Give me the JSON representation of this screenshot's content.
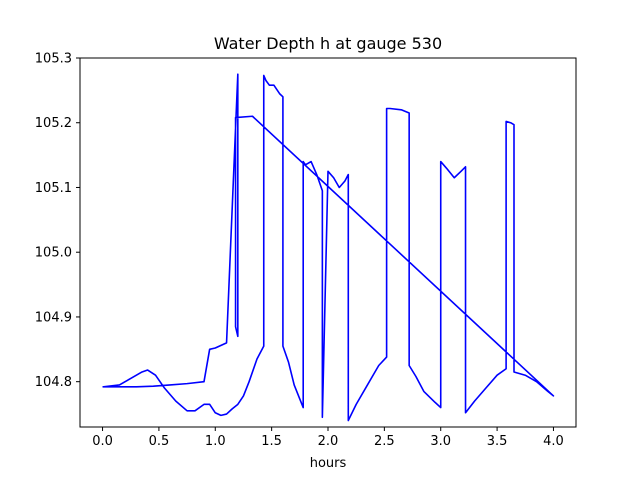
{
  "chart_data": {
    "type": "line",
    "title": "Water Depth h at gauge 530",
    "xlabel": "hours",
    "ylabel": "",
    "xlim": [
      -0.2,
      4.2
    ],
    "ylim": [
      104.73,
      105.3
    ],
    "xticks": [
      0.0,
      0.5,
      1.0,
      1.5,
      2.0,
      2.5,
      3.0,
      3.5,
      4.0
    ],
    "xtick_labels": [
      "0.0",
      "0.5",
      "1.0",
      "1.5",
      "2.0",
      "2.5",
      "3.0",
      "3.5",
      "4.0"
    ],
    "yticks": [
      104.8,
      104.9,
      105.0,
      105.1,
      105.2,
      105.3
    ],
    "ytick_labels": [
      "104.8",
      "104.9",
      "105.0",
      "105.1",
      "105.2",
      "105.3"
    ],
    "grid": false,
    "series": [
      {
        "color": "#0000ff",
        "x": [
          0.0,
          0.15,
          0.25,
          0.35,
          0.4,
          0.47,
          0.55,
          0.65,
          0.75,
          0.82,
          0.9,
          0.95,
          1.0,
          1.05,
          1.1,
          1.15,
          1.2,
          1.25,
          1.3,
          1.37,
          1.43,
          1.43,
          1.45,
          1.48,
          1.52,
          1.57,
          1.6,
          1.6,
          1.65,
          1.7,
          1.78,
          1.78,
          1.8,
          1.85,
          1.9,
          1.95,
          1.95,
          2.0,
          2.05,
          2.1,
          2.15,
          2.18,
          2.18,
          2.25,
          2.35,
          2.45,
          2.52,
          2.52,
          2.55,
          2.65,
          2.72,
          2.72,
          2.78,
          2.85,
          2.95,
          3.0,
          3.0,
          3.05,
          3.12,
          3.18,
          3.22,
          3.22,
          3.3,
          3.4,
          3.5,
          3.58,
          3.58,
          3.62,
          3.65,
          3.65,
          3.75,
          3.85,
          3.95,
          4.0,
          1.33,
          1.18,
          1.18,
          1.2,
          1.2,
          1.1,
          1.0,
          0.95,
          0.9,
          0.75,
          0.6,
          0.45,
          0.3,
          0.15,
          0.05,
          0.0
        ],
        "y": [
          104.792,
          104.795,
          104.805,
          104.815,
          104.818,
          104.81,
          104.79,
          104.77,
          104.755,
          104.755,
          104.765,
          104.765,
          104.752,
          104.748,
          104.75,
          104.758,
          104.765,
          104.778,
          104.8,
          104.835,
          104.855,
          105.273,
          105.265,
          105.258,
          105.258,
          105.245,
          105.24,
          104.855,
          104.83,
          104.795,
          104.76,
          105.14,
          105.135,
          105.14,
          105.12,
          105.095,
          104.745,
          105.125,
          105.115,
          105.1,
          105.11,
          105.12,
          104.74,
          104.765,
          104.795,
          104.825,
          104.838,
          105.222,
          105.222,
          105.22,
          105.215,
          104.825,
          104.808,
          104.785,
          104.768,
          104.76,
          105.14,
          105.13,
          105.115,
          105.125,
          105.132,
          104.752,
          104.77,
          104.79,
          104.81,
          104.82,
          105.202,
          105.2,
          105.197,
          104.815,
          104.81,
          104.8,
          104.785,
          104.778,
          105.21,
          105.208,
          104.885,
          104.87,
          105.275,
          104.86,
          104.852,
          104.85,
          104.8,
          104.797,
          104.795,
          104.793,
          104.792,
          104.792,
          104.792,
          104.792
        ]
      }
    ]
  }
}
